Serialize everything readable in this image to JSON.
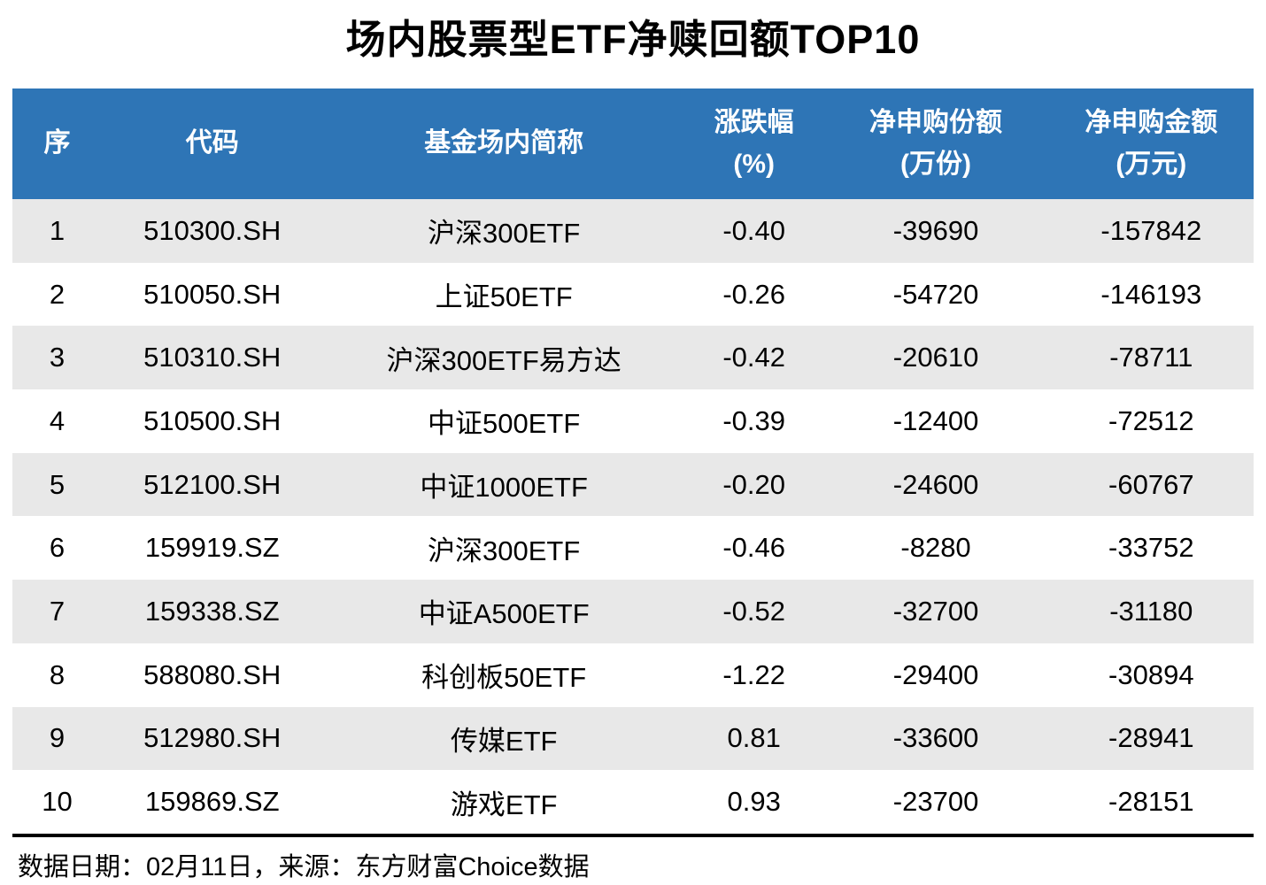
{
  "title": "场内股票型ETF净赎回额TOP10",
  "footer": "数据日期：02月11日，来源：东方财富Choice数据",
  "colors": {
    "header_bg": "#2E75B6",
    "header_text": "#FFFFFF",
    "row_stripe_bg": "#E8E8E8",
    "row_bg": "#FFFFFF",
    "divider": "#000000"
  },
  "chart_data": {
    "type": "table",
    "title": "场内股票型ETF净赎回额TOP10",
    "columns": [
      {
        "label": "序",
        "unit": ""
      },
      {
        "label": "代码",
        "unit": ""
      },
      {
        "label": "基金场内简称",
        "unit": ""
      },
      {
        "label": "涨跌幅",
        "unit": "(%)"
      },
      {
        "label": "净申购份额",
        "unit": "(万份)"
      },
      {
        "label": "净申购金额",
        "unit": "(万元)"
      }
    ],
    "rows": [
      [
        "1",
        "510300.SH",
        "沪深300ETF",
        "-0.40",
        "-39690",
        "-157842"
      ],
      [
        "2",
        "510050.SH",
        "上证50ETF",
        "-0.26",
        "-54720",
        "-146193"
      ],
      [
        "3",
        "510310.SH",
        "沪深300ETF易方达",
        "-0.42",
        "-20610",
        "-78711"
      ],
      [
        "4",
        "510500.SH",
        "中证500ETF",
        "-0.39",
        "-12400",
        "-72512"
      ],
      [
        "5",
        "512100.SH",
        "中证1000ETF",
        "-0.20",
        "-24600",
        "-60767"
      ],
      [
        "6",
        "159919.SZ",
        "沪深300ETF",
        "-0.46",
        "-8280",
        "-33752"
      ],
      [
        "7",
        "159338.SZ",
        "中证A500ETF",
        "-0.52",
        "-32700",
        "-31180"
      ],
      [
        "8",
        "588080.SH",
        "科创板50ETF",
        "-1.22",
        "-29400",
        "-30894"
      ],
      [
        "9",
        "512980.SH",
        "传媒ETF",
        "0.81",
        "-33600",
        "-28941"
      ],
      [
        "10",
        "159869.SZ",
        "游戏ETF",
        "0.93",
        "-23700",
        "-28151"
      ]
    ]
  }
}
